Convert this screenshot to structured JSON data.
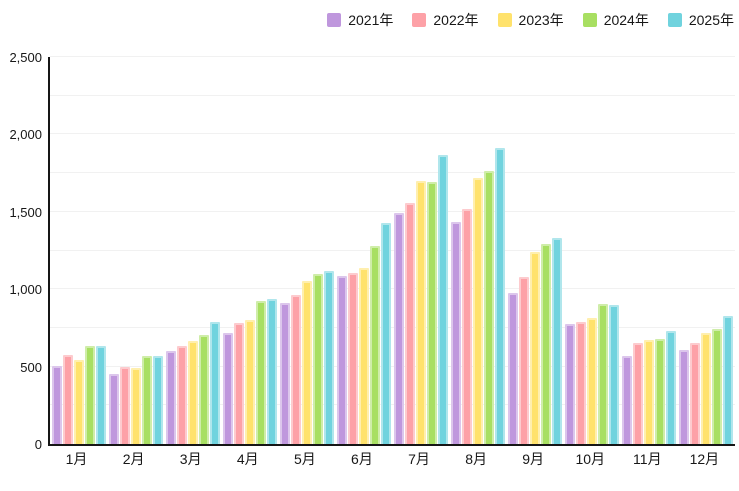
{
  "chart_data": {
    "type": "bar",
    "title": "",
    "categories": [
      "1月",
      "2月",
      "3月",
      "4月",
      "5月",
      "6月",
      "7月",
      "8月",
      "9月",
      "10月",
      "11月",
      "12月"
    ],
    "series": [
      {
        "name": "2021年",
        "color": "#bf97dd",
        "values": [
          505,
          455,
          600,
          715,
          910,
          1085,
          1490,
          1435,
          975,
          775,
          570,
          610
        ]
      },
      {
        "name": "2022年",
        "color": "#fda1a7",
        "values": [
          575,
          495,
          635,
          780,
          965,
          1105,
          1555,
          1520,
          1080,
          790,
          650,
          650
        ]
      },
      {
        "name": "2023年",
        "color": "#ffe26c",
        "values": [
          545,
          490,
          665,
          800,
          1050,
          1140,
          1700,
          1720,
          1240,
          815,
          675,
          715
        ]
      },
      {
        "name": "2024年",
        "color": "#a8df62",
        "values": [
          630,
          570,
          705,
          925,
          1100,
          1280,
          1690,
          1765,
          1290,
          905,
          680,
          740
        ]
      },
      {
        "name": "2025年",
        "color": "#70d3de",
        "values": [
          635,
          570,
          785,
          935,
          1120,
          1430,
          1865,
          1915,
          1330,
          900,
          730,
          830
        ]
      }
    ],
    "ylim": [
      0,
      2500
    ],
    "y_ticks": [
      {
        "value": 0,
        "label": "0"
      },
      {
        "value": 500,
        "label": "500"
      },
      {
        "value": 1000,
        "label": "1,000"
      },
      {
        "value": 1500,
        "label": "1,500"
      },
      {
        "value": 2000,
        "label": "2,000"
      },
      {
        "value": 2500,
        "label": "2,500"
      }
    ],
    "grid": true,
    "grid_interval": 250,
    "legend_position": "top-right",
    "xlabel": "",
    "ylabel": ""
  },
  "colors": {
    "axis": "#161616",
    "grid": "#f1f1f1",
    "background": "#ffffff",
    "text": "#171717"
  }
}
